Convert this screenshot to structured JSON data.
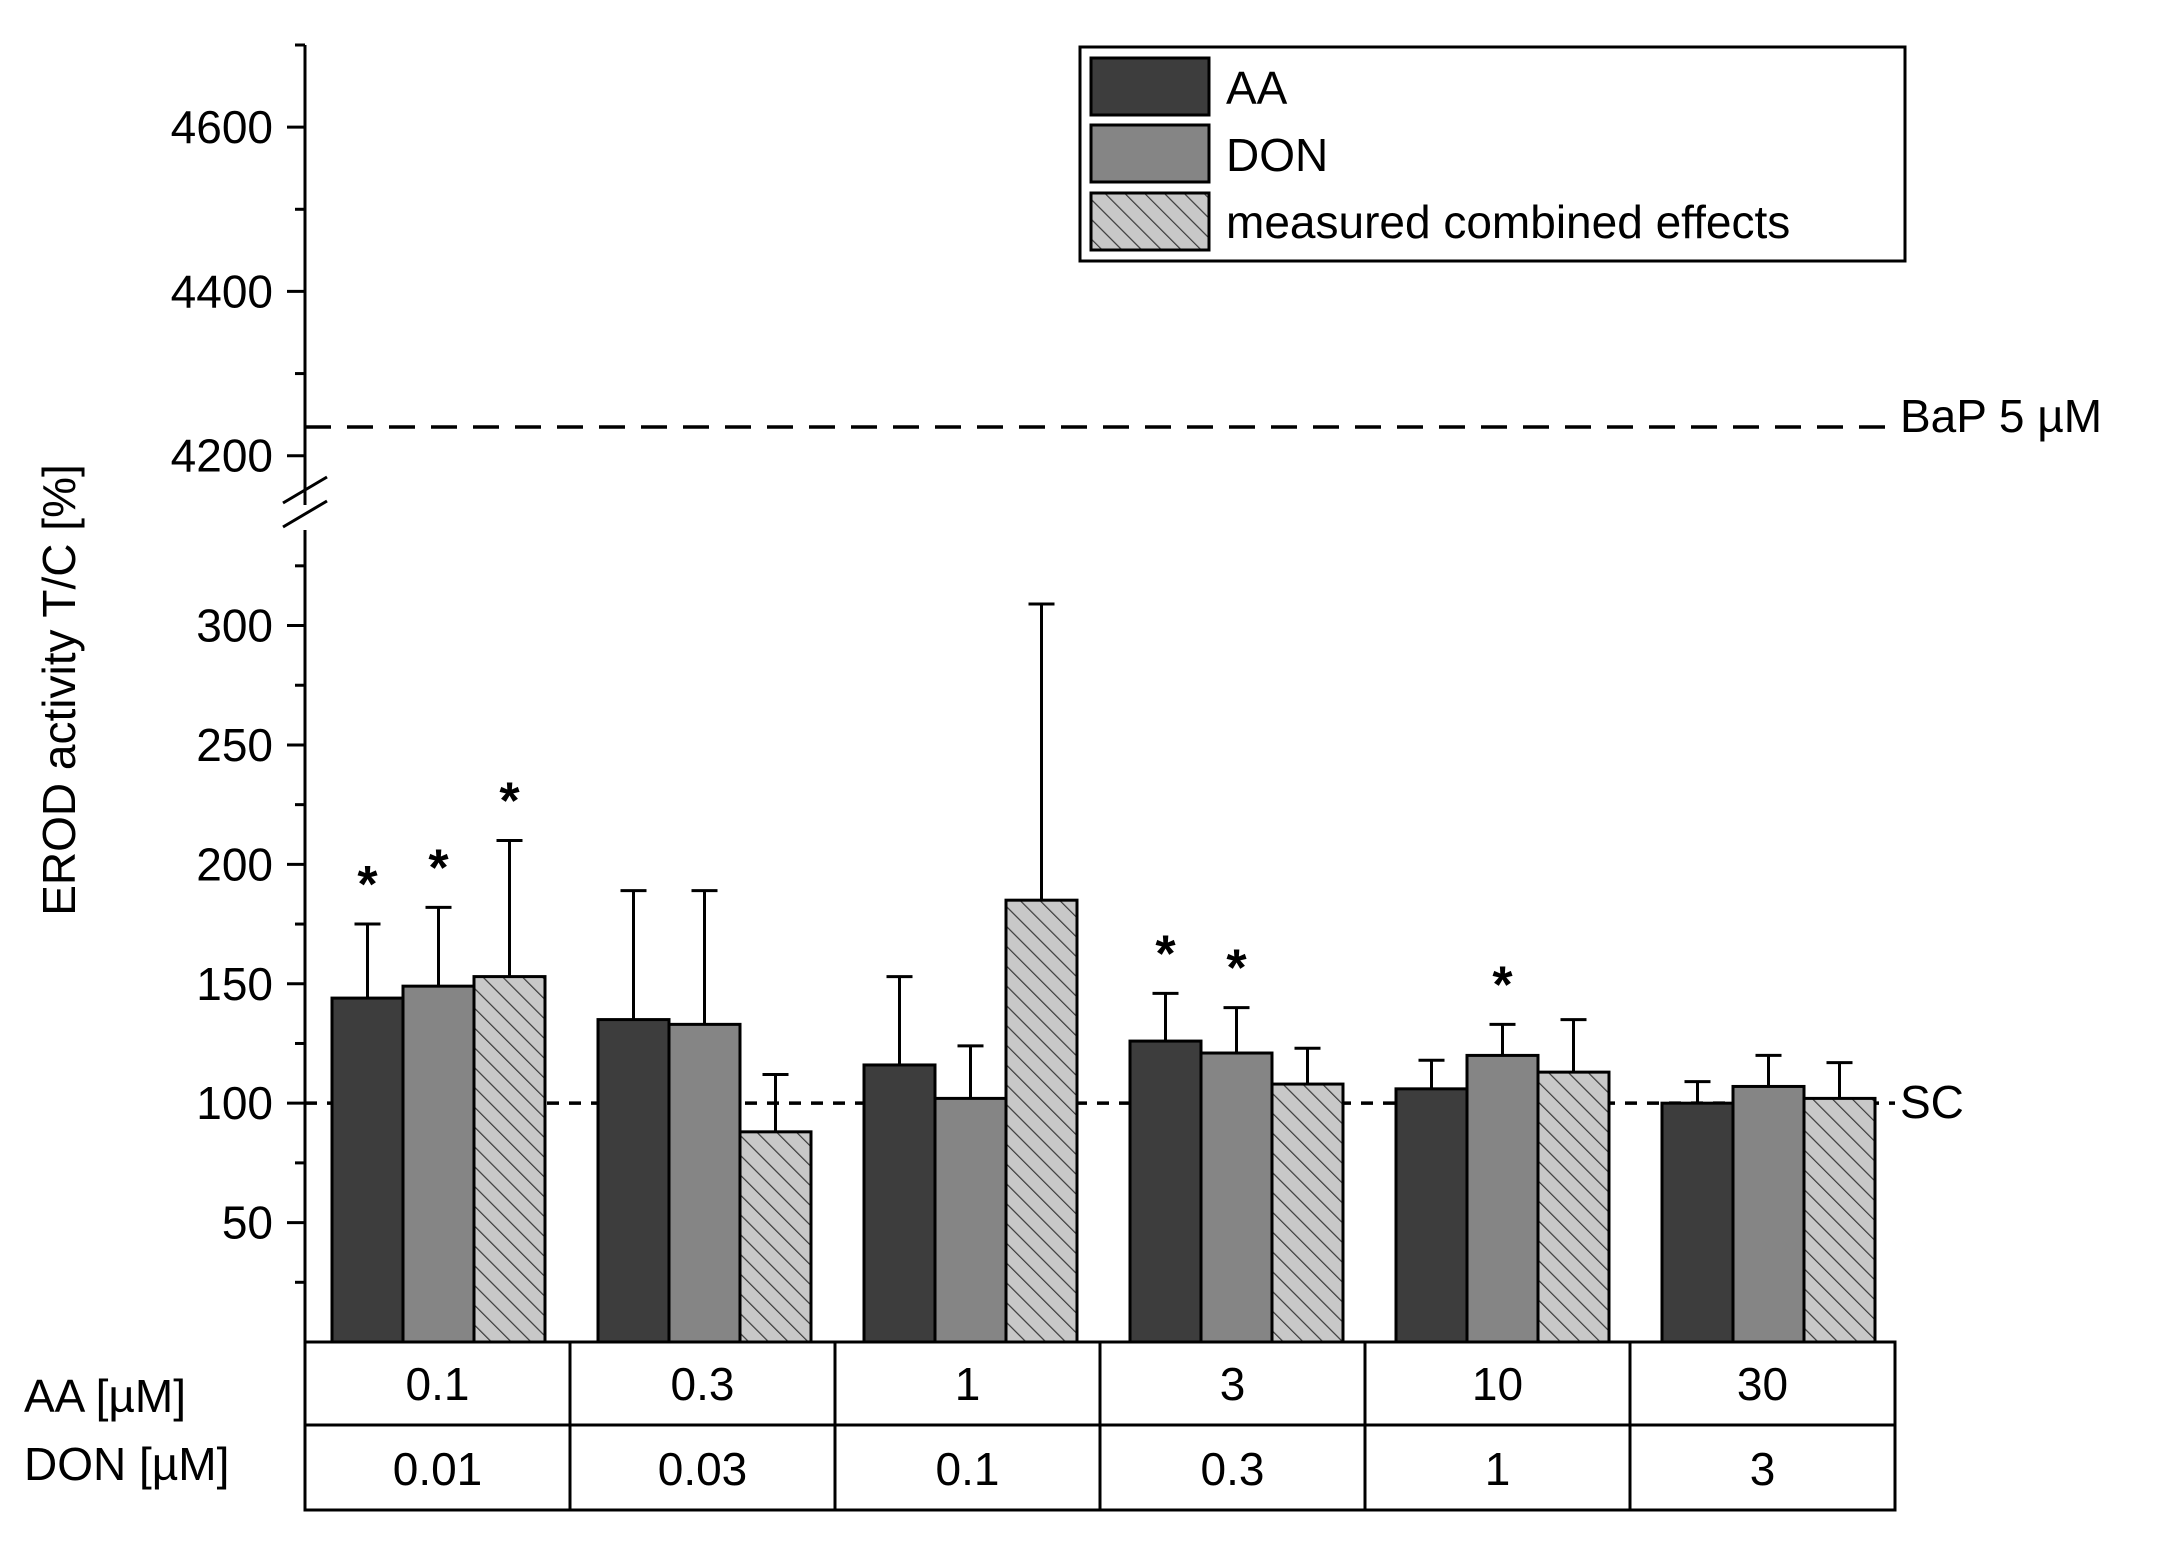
{
  "chart_data": {
    "type": "bar",
    "ylabel": "EROD activity T/C [%]",
    "y_axis_broken": true,
    "y_lower_range": [
      0,
      340
    ],
    "y_upper_range": [
      4140,
      4700
    ],
    "y_ticks_lower": [
      50,
      100,
      150,
      200,
      250,
      300
    ],
    "y_ticks_upper": [
      4200,
      4400,
      4600
    ],
    "categories": [
      {
        "aa": "0.1",
        "don": "0.01"
      },
      {
        "aa": "0.3",
        "don": "0.03"
      },
      {
        "aa": "1",
        "don": "0.1"
      },
      {
        "aa": "3",
        "don": "0.3"
      },
      {
        "aa": "10",
        "don": "1"
      },
      {
        "aa": "30",
        "don": "3"
      }
    ],
    "row_labels": {
      "aa": "AA [µM]",
      "don": "DON [µM]"
    },
    "series": [
      {
        "name": "AA",
        "color": "#3d3d3d",
        "pattern": "solid",
        "values": [
          144,
          135,
          116,
          126,
          106,
          100
        ],
        "errors": [
          31,
          54,
          37,
          20,
          12,
          9
        ],
        "significant": [
          true,
          false,
          false,
          true,
          false,
          false
        ]
      },
      {
        "name": "DON",
        "color": "#858585",
        "pattern": "solid",
        "values": [
          149,
          133,
          102,
          121,
          120,
          107
        ],
        "errors": [
          33,
          56,
          22,
          19,
          13,
          13
        ],
        "significant": [
          true,
          false,
          false,
          true,
          true,
          false
        ]
      },
      {
        "name": "measured combined effects",
        "color": "#c8c8c8",
        "pattern": "hatched",
        "values": [
          153,
          88,
          185,
          108,
          113,
          102
        ],
        "errors": [
          57,
          24,
          124,
          15,
          22,
          15
        ],
        "significant": [
          true,
          false,
          false,
          false,
          false,
          false
        ]
      }
    ],
    "significance_mark": "*",
    "reference_lines": [
      {
        "label": "BaP 5 µM",
        "value": 4235,
        "style": "dashed"
      },
      {
        "label": "SC",
        "value": 100,
        "style": "dotted"
      }
    ],
    "legend_position": "top-right",
    "grid": false
  }
}
